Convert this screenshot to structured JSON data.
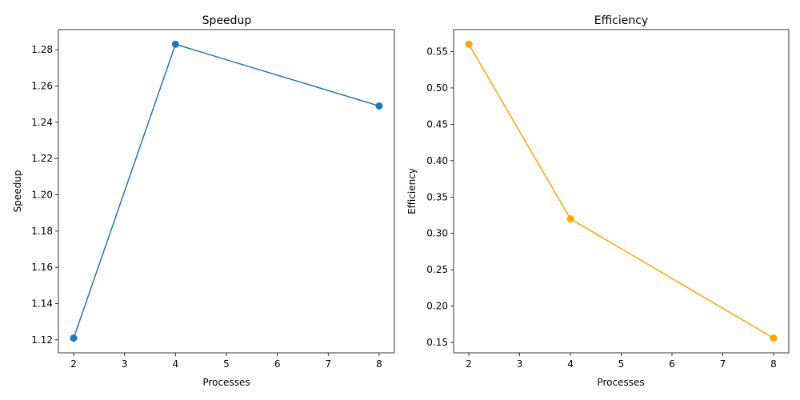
{
  "chart_data": [
    {
      "type": "line",
      "title": "Speedup",
      "xlabel": "Processes",
      "ylabel": "Speedup",
      "x": [
        2,
        4,
        8
      ],
      "series": [
        {
          "values": [
            1.121,
            1.283,
            1.249
          ],
          "color": "#1f77b4",
          "marker": "circle"
        }
      ],
      "xlim": [
        1.7,
        8.3
      ],
      "ylim": [
        1.1129,
        1.2911
      ],
      "xticks": [
        2,
        3,
        4,
        5,
        6,
        7,
        8
      ],
      "xtick_labels": [
        "2",
        "3",
        "4",
        "5",
        "6",
        "7",
        "8"
      ],
      "yticks": [
        1.12,
        1.14,
        1.16,
        1.18,
        1.2,
        1.22,
        1.24,
        1.26,
        1.28
      ],
      "ytick_labels": [
        "1.12",
        "1.14",
        "1.16",
        "1.18",
        "1.20",
        "1.22",
        "1.24",
        "1.26",
        "1.28"
      ],
      "grid": false,
      "legend": "none"
    },
    {
      "type": "line",
      "title": "Efficiency",
      "xlabel": "Processes",
      "ylabel": "Efficiency",
      "x": [
        2,
        4,
        8
      ],
      "series": [
        {
          "values": [
            0.56,
            0.32,
            0.156
          ],
          "color": "#ffa500",
          "marker": "circle"
        }
      ],
      "xlim": [
        1.7,
        8.3
      ],
      "ylim": [
        0.1358,
        0.5802
      ],
      "xticks": [
        2,
        3,
        4,
        5,
        6,
        7,
        8
      ],
      "xtick_labels": [
        "2",
        "3",
        "4",
        "5",
        "6",
        "7",
        "8"
      ],
      "yticks": [
        0.15,
        0.2,
        0.25,
        0.3,
        0.35,
        0.4,
        0.45,
        0.5,
        0.55
      ],
      "ytick_labels": [
        "0.15",
        "0.20",
        "0.25",
        "0.30",
        "0.35",
        "0.40",
        "0.45",
        "0.50",
        "0.55"
      ],
      "grid": false,
      "legend": "none"
    }
  ]
}
